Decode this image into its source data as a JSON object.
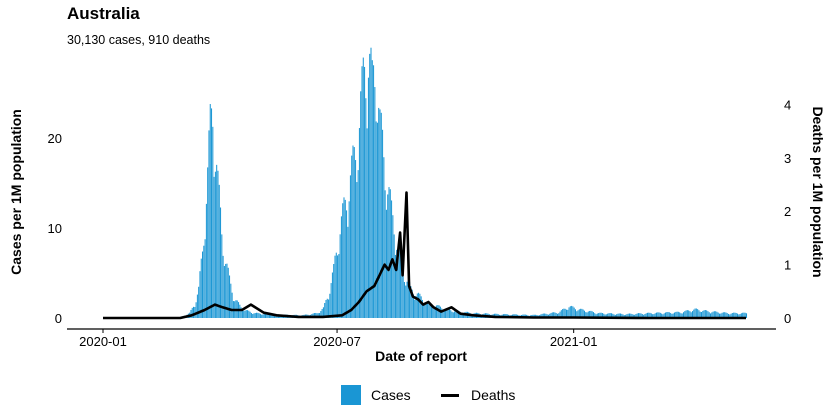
{
  "header": {
    "title": "Australia",
    "subtitle": "30,130 cases, 910 deaths"
  },
  "legend": {
    "cases_label": "Cases",
    "deaths_label": "Deaths"
  },
  "colors": {
    "cases": "#1a96d4",
    "deaths": "#000000"
  },
  "chart_data": {
    "type": "bar",
    "title": "Australia",
    "subtitle": "30,130 cases, 910 deaths",
    "xlabel": "Date of report",
    "ylabel_left": "Cases per 1M population",
    "ylabel_right": "Deaths per 1M population",
    "x_range": [
      "2020-01-01",
      "2021-05-15"
    ],
    "y_left_range": [
      0,
      28
    ],
    "y_right_range": [
      0,
      4.5
    ],
    "x_ticks": [
      "2020-01",
      "2020-07",
      "2021-01"
    ],
    "y_left_ticks": [
      0,
      10,
      20
    ],
    "y_right_ticks": [
      0,
      1,
      2,
      3,
      4
    ],
    "grid": false,
    "legend_position": "bottom",
    "series": [
      {
        "name": "Cases",
        "kind": "bar",
        "axis": "left",
        "points": [
          [
            "2020-01-01",
            0
          ],
          [
            "2020-02-15",
            0.05
          ],
          [
            "2020-03-01",
            0.1
          ],
          [
            "2020-03-08",
            0.5
          ],
          [
            "2020-03-12",
            1.5
          ],
          [
            "2020-03-15",
            3
          ],
          [
            "2020-03-18",
            7
          ],
          [
            "2020-03-20",
            11
          ],
          [
            "2020-03-22",
            15
          ],
          [
            "2020-03-24",
            20
          ],
          [
            "2020-03-26",
            22
          ],
          [
            "2020-03-28",
            18
          ],
          [
            "2020-03-30",
            14
          ],
          [
            "2020-04-02",
            9
          ],
          [
            "2020-04-05",
            6
          ],
          [
            "2020-04-08",
            4
          ],
          [
            "2020-04-12",
            2
          ],
          [
            "2020-04-16",
            1.3
          ],
          [
            "2020-04-20",
            0.8
          ],
          [
            "2020-04-28",
            0.5
          ],
          [
            "2020-05-10",
            0.4
          ],
          [
            "2020-05-25",
            0.3
          ],
          [
            "2020-06-05",
            0.3
          ],
          [
            "2020-06-15",
            0.5
          ],
          [
            "2020-06-20",
            1
          ],
          [
            "2020-06-25",
            3
          ],
          [
            "2020-06-28",
            5
          ],
          [
            "2020-07-01",
            8
          ],
          [
            "2020-07-04",
            10
          ],
          [
            "2020-07-07",
            12
          ],
          [
            "2020-07-10",
            14
          ],
          [
            "2020-07-13",
            16
          ],
          [
            "2020-07-16",
            18
          ],
          [
            "2020-07-19",
            22
          ],
          [
            "2020-07-22",
            26
          ],
          [
            "2020-07-25",
            28
          ],
          [
            "2020-07-28",
            24
          ],
          [
            "2020-07-31",
            27
          ],
          [
            "2020-08-03",
            20
          ],
          [
            "2020-08-06",
            17
          ],
          [
            "2020-08-09",
            14
          ],
          [
            "2020-08-12",
            11
          ],
          [
            "2020-08-15",
            9
          ],
          [
            "2020-08-18",
            7
          ],
          [
            "2020-08-21",
            5
          ],
          [
            "2020-08-24",
            4
          ],
          [
            "2020-08-27",
            3
          ],
          [
            "2020-09-01",
            2.5
          ],
          [
            "2020-09-05",
            2
          ],
          [
            "2020-09-10",
            1.5
          ],
          [
            "2020-09-15",
            1.3
          ],
          [
            "2020-09-22",
            1
          ],
          [
            "2020-10-01",
            0.7
          ],
          [
            "2020-10-15",
            0.5
          ],
          [
            "2020-11-01",
            0.4
          ],
          [
            "2020-12-01",
            0.3
          ],
          [
            "2020-12-20",
            0.6
          ],
          [
            "2020-12-28",
            1.2
          ],
          [
            "2021-01-05",
            0.9
          ],
          [
            "2021-01-20",
            0.5
          ],
          [
            "2021-02-10",
            0.4
          ],
          [
            "2021-03-01",
            0.5
          ],
          [
            "2021-03-25",
            0.6
          ],
          [
            "2021-04-05",
            0.9
          ],
          [
            "2021-04-15",
            0.7
          ],
          [
            "2021-05-01",
            0.5
          ],
          [
            "2021-05-15",
            0.5
          ]
        ]
      },
      {
        "name": "Deaths",
        "kind": "line",
        "axis": "right",
        "points": [
          [
            "2020-01-01",
            0
          ],
          [
            "2020-03-01",
            0
          ],
          [
            "2020-03-10",
            0.05
          ],
          [
            "2020-03-20",
            0.15
          ],
          [
            "2020-03-28",
            0.25
          ],
          [
            "2020-04-03",
            0.2
          ],
          [
            "2020-04-10",
            0.15
          ],
          [
            "2020-04-18",
            0.15
          ],
          [
            "2020-04-25",
            0.25
          ],
          [
            "2020-05-05",
            0.1
          ],
          [
            "2020-05-15",
            0.05
          ],
          [
            "2020-06-01",
            0.02
          ],
          [
            "2020-06-20",
            0.02
          ],
          [
            "2020-07-05",
            0.05
          ],
          [
            "2020-07-12",
            0.15
          ],
          [
            "2020-07-18",
            0.3
          ],
          [
            "2020-07-24",
            0.5
          ],
          [
            "2020-07-30",
            0.6
          ],
          [
            "2020-08-03",
            0.8
          ],
          [
            "2020-08-07",
            1.0
          ],
          [
            "2020-08-10",
            0.9
          ],
          [
            "2020-08-13",
            1.1
          ],
          [
            "2020-08-16",
            0.9
          ],
          [
            "2020-08-19",
            1.6
          ],
          [
            "2020-08-21",
            0.8
          ],
          [
            "2020-08-24",
            2.35
          ],
          [
            "2020-08-26",
            0.6
          ],
          [
            "2020-08-29",
            0.4
          ],
          [
            "2020-09-02",
            0.35
          ],
          [
            "2020-09-06",
            0.25
          ],
          [
            "2020-09-10",
            0.3
          ],
          [
            "2020-09-14",
            0.2
          ],
          [
            "2020-09-20",
            0.12
          ],
          [
            "2020-09-28",
            0.2
          ],
          [
            "2020-10-05",
            0.08
          ],
          [
            "2020-10-15",
            0.05
          ],
          [
            "2020-11-01",
            0.02
          ],
          [
            "2020-12-01",
            0.01
          ],
          [
            "2021-01-01",
            0.01
          ],
          [
            "2021-03-01",
            0.0
          ],
          [
            "2021-05-15",
            0.0
          ]
        ]
      }
    ]
  }
}
